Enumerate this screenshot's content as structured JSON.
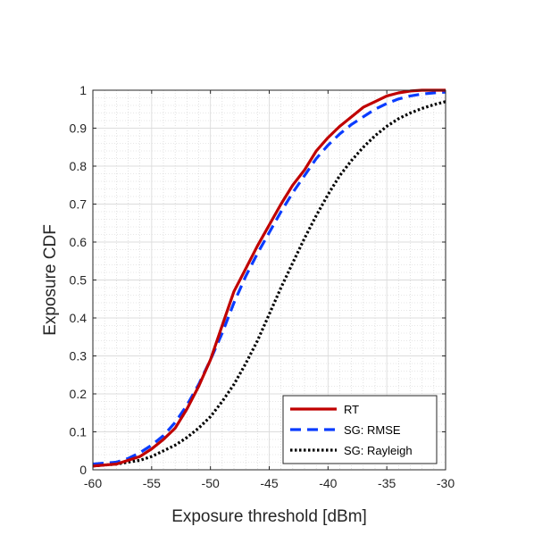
{
  "chart_data": {
    "type": "line",
    "title": "",
    "xlabel": "Exposure threshold [dBm]",
    "ylabel": "Exposure CDF",
    "xlim": [
      -60,
      -30
    ],
    "ylim": [
      0,
      1
    ],
    "xticks": [
      -60,
      -55,
      -50,
      -45,
      -40,
      -35,
      -30
    ],
    "yticks": [
      0,
      0.1,
      0.2,
      0.3,
      0.4,
      0.5,
      0.6,
      0.7,
      0.8,
      0.9,
      1
    ],
    "xtick_labels": [
      "-60",
      "-55",
      "-50",
      "-45",
      "-40",
      "-35",
      "-30"
    ],
    "ytick_labels": [
      "0",
      "0.1",
      "0.2",
      "0.3",
      "0.4",
      "0.5",
      "0.6",
      "0.7",
      "0.8",
      "0.9",
      "1"
    ],
    "grid": "major and minor",
    "legend_position": "bottom-right",
    "series": [
      {
        "name": "RT",
        "color": "#c00000",
        "style": "solid",
        "x": [
          -60,
          -58,
          -57,
          -56,
          -55,
          -54,
          -53,
          -52,
          -51,
          -50,
          -49,
          -48,
          -47,
          -46,
          -45,
          -44,
          -43,
          -42,
          -41,
          -40,
          -39,
          -38,
          -37,
          -36,
          -35,
          -34,
          -33,
          -32,
          -31,
          -30
        ],
        "y": [
          0.01,
          0.015,
          0.025,
          0.035,
          0.055,
          0.08,
          0.11,
          0.16,
          0.22,
          0.29,
          0.38,
          0.47,
          0.53,
          0.59,
          0.645,
          0.7,
          0.75,
          0.79,
          0.84,
          0.875,
          0.905,
          0.93,
          0.955,
          0.97,
          0.985,
          0.993,
          0.998,
          1.0,
          1.0,
          1.0
        ]
      },
      {
        "name": "SG: RMSE",
        "color": "#0a3cff",
        "style": "dashed",
        "x": [
          -60,
          -58,
          -57,
          -56,
          -55,
          -54,
          -53,
          -52,
          -51,
          -50,
          -49,
          -48,
          -47,
          -46,
          -45,
          -44,
          -43,
          -42,
          -41,
          -40,
          -39,
          -38,
          -37,
          -36,
          -35,
          -34,
          -33,
          -32,
          -31,
          -30
        ],
        "y": [
          0.015,
          0.02,
          0.03,
          0.045,
          0.065,
          0.09,
          0.125,
          0.17,
          0.225,
          0.29,
          0.36,
          0.44,
          0.51,
          0.57,
          0.625,
          0.68,
          0.73,
          0.775,
          0.82,
          0.855,
          0.885,
          0.91,
          0.93,
          0.95,
          0.965,
          0.977,
          0.985,
          0.99,
          0.993,
          0.995
        ]
      },
      {
        "name": "SG: Rayleigh",
        "color": "#000000",
        "style": "dotted",
        "x": [
          -60,
          -58,
          -56,
          -55,
          -54,
          -53,
          -52,
          -51,
          -50,
          -49,
          -48,
          -47,
          -46,
          -45,
          -44,
          -43,
          -42,
          -41,
          -40,
          -39,
          -38,
          -37,
          -36,
          -35,
          -34,
          -33,
          -32,
          -31,
          -30
        ],
        "y": [
          0.01,
          0.015,
          0.025,
          0.035,
          0.05,
          0.065,
          0.085,
          0.11,
          0.14,
          0.18,
          0.225,
          0.28,
          0.34,
          0.41,
          0.48,
          0.545,
          0.61,
          0.67,
          0.725,
          0.775,
          0.815,
          0.85,
          0.88,
          0.905,
          0.925,
          0.94,
          0.952,
          0.962,
          0.97
        ]
      }
    ]
  }
}
